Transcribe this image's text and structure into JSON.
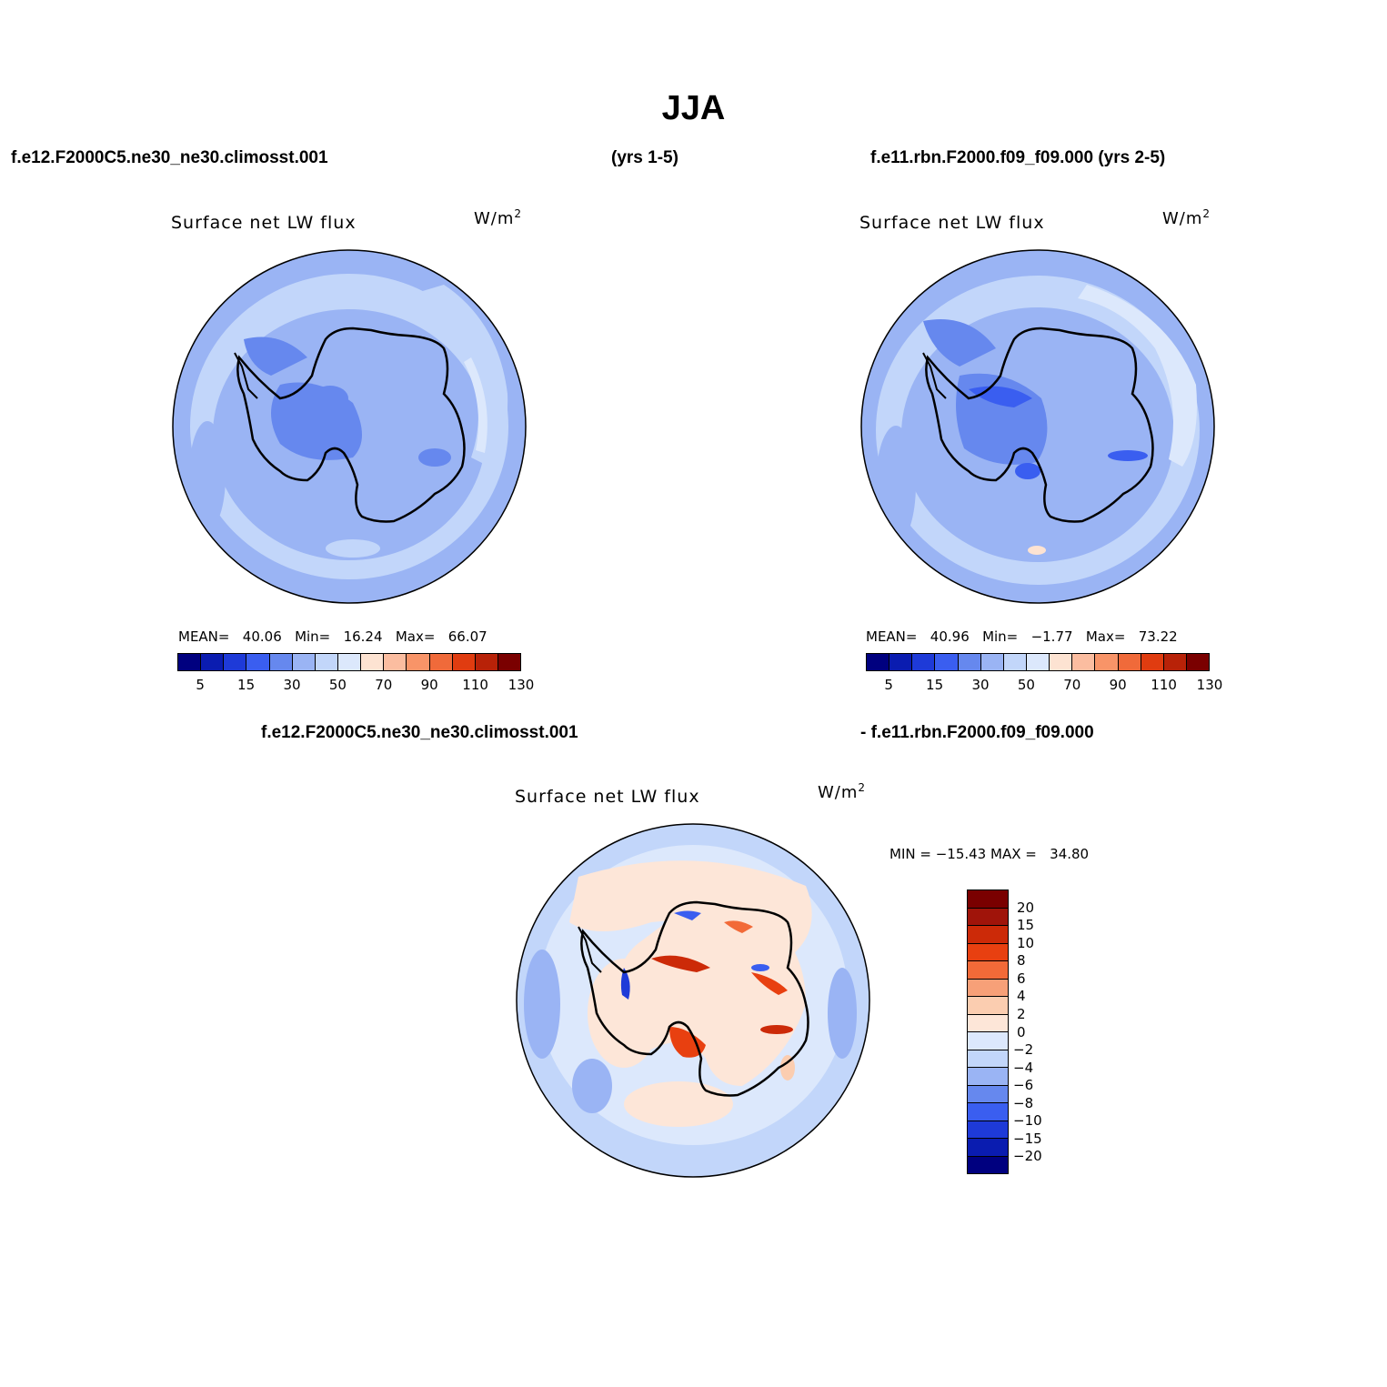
{
  "figure": {
    "title": "JJA"
  },
  "header": {
    "left_case": "f.e12.F2000C5.ne30_ne30.climosst.001",
    "middle_years": "(yrs 1-5)",
    "right_case": "f.e11.rbn.F2000.f09_f09.000 (yrs 2-5)"
  },
  "panels": [
    {
      "variable": "Surface net LW flux",
      "units_base": "W/m",
      "units_exp": "2",
      "mean_label": "MEAN=",
      "mean_value": "40.06",
      "min_label": "Min=",
      "min_value": "16.24",
      "max_label": "Max=",
      "max_value": "66.07"
    },
    {
      "variable": "Surface net LW flux",
      "units_base": "W/m",
      "units_exp": "2",
      "mean_label": "MEAN=",
      "mean_value": "40.96",
      "min_label": "Min=",
      "min_value": "−1.77",
      "max_label": "Max=",
      "max_value": "73.22"
    }
  ],
  "diff": {
    "title_left": "f.e12.F2000C5.ne30_ne30.climosst.001",
    "title_right": "- f.e11.rbn.F2000.f09_f09.000",
    "variable": "Surface net LW flux",
    "units_base": "W/m",
    "units_exp": "2",
    "min_label": "MIN =",
    "min_value": "−15.43",
    "max_label": "MAX =",
    "max_value": "34.80"
  },
  "colorbar_main": {
    "colors": [
      "#00007f",
      "#0a1cb0",
      "#1e3ad8",
      "#3a5ef0",
      "#6688ee",
      "#9ab4f4",
      "#c2d6fa",
      "#dce8fc",
      "#fde3d2",
      "#fbbda0",
      "#f89468",
      "#f06a3a",
      "#e03c10",
      "#b82208",
      "#7a0000"
    ],
    "tick_labels": [
      "5",
      "15",
      "30",
      "50",
      "70",
      "90",
      "110",
      "130"
    ]
  },
  "colorbar_diff": {
    "colors": [
      "#7a0000",
      "#a0140a",
      "#cc2a08",
      "#e84010",
      "#f26a38",
      "#f7a078",
      "#fbcdb0",
      "#fde6d8",
      "#dce8fc",
      "#c2d6fa",
      "#9ab4f4",
      "#6688ee",
      "#3a5ef0",
      "#1e3ad8",
      "#0a1cb0",
      "#00007f"
    ],
    "tick_labels": [
      "20",
      "15",
      "10",
      "8",
      "6",
      "4",
      "2",
      "0",
      "−2",
      "−4",
      "−6",
      "−8",
      "−10",
      "−15",
      "−20"
    ]
  }
}
